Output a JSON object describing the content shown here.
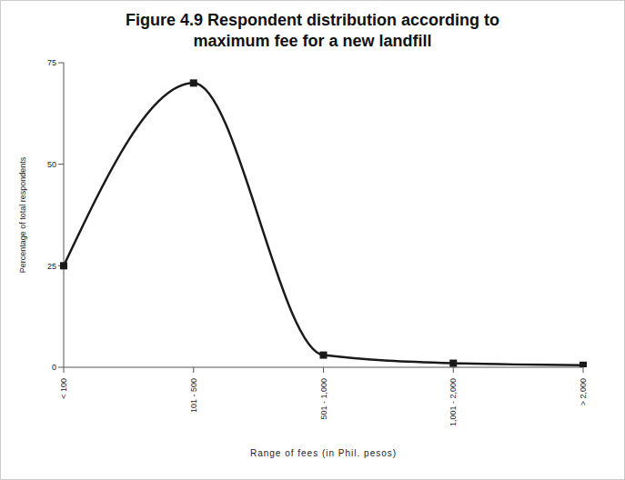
{
  "chart_data": {
    "type": "line",
    "title": "Figure 4.9 Respondent distribution according to maximum fee for a new landfill",
    "x_label": "Range of fees (in Phil. pesos)",
    "y_label": "Percentage of total respondents",
    "categories": [
      "< 100",
      "101 - 500",
      "501 - 1,000",
      "1,001 - 2,000",
      "> 2,000"
    ],
    "values": [
      25,
      70,
      3,
      1,
      0.5
    ],
    "color": "#1a1a1a",
    "marker": "square",
    "ylim": [
      0,
      75
    ],
    "yticks": [
      0,
      25,
      50,
      75
    ],
    "grid": false
  }
}
